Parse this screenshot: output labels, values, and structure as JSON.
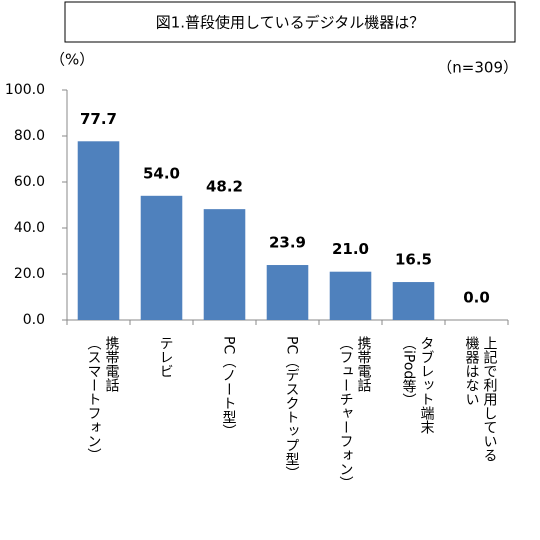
{
  "chart_data": {
    "type": "bar",
    "title": "図1.普段使用しているデジタル機器は？",
    "unit_label": "（%）",
    "note": "（n=309）",
    "categories": [
      [
        "携帯電話",
        "（スマートフォン）"
      ],
      [
        "テレビ"
      ],
      [
        "PC（ノート型）"
      ],
      [
        "PC（デスクトップ型）"
      ],
      [
        "携帯電話",
        "（フューチャーフォン）"
      ],
      [
        "タブレット端末",
        "（iPod等）"
      ],
      [
        "上記で利用している",
        "機器はない"
      ]
    ],
    "values": [
      77.7,
      54.0,
      48.2,
      23.9,
      21.0,
      16.5,
      0.0
    ],
    "value_labels": [
      "77.7",
      "54.0",
      "48.2",
      "23.9",
      "21.0",
      "16.5",
      "0.0"
    ],
    "color": "#4f81bd",
    "ylim": [
      0,
      100
    ],
    "yticks": [
      {
        "value": 0,
        "label": "0.0"
      },
      {
        "value": 20,
        "label": "20.0"
      },
      {
        "value": 40,
        "label": "40.0"
      },
      {
        "value": 60,
        "label": "60.0"
      },
      {
        "value": 80,
        "label": "80.0"
      },
      {
        "value": 100,
        "label": "100.0"
      }
    ],
    "grid": false
  }
}
